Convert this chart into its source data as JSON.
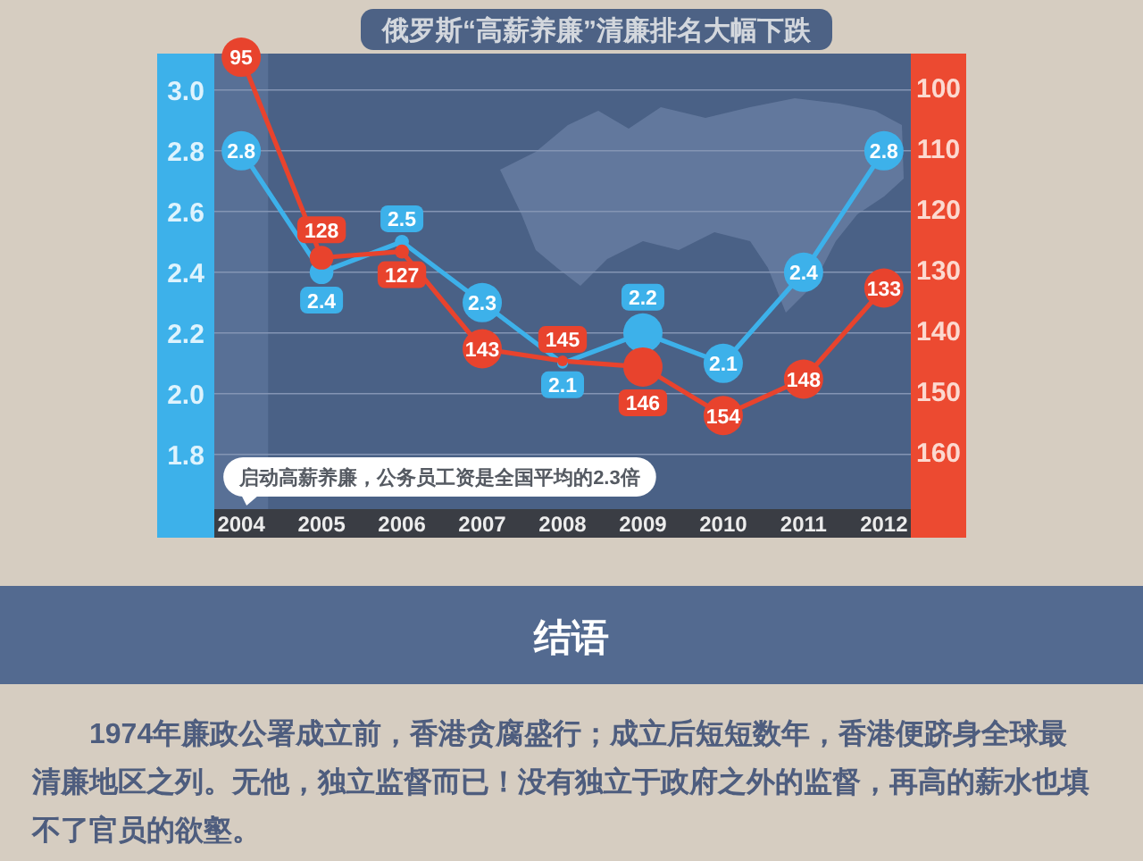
{
  "chart_data": {
    "type": "line",
    "title": "俄罗斯“高薪养廉”清廉排名大幅下跌",
    "categories": [
      "2004",
      "2005",
      "2006",
      "2007",
      "2008",
      "2009",
      "2010",
      "2011",
      "2012"
    ],
    "series": [
      {
        "color": "#3db1ea",
        "values": [
          2.8,
          2.4,
          2.5,
          2.3,
          2.1,
          2.2,
          2.1,
          2.4,
          2.8
        ]
      },
      {
        "color": "#e8432d",
        "axis": "y2",
        "values": [
          95,
          128,
          127,
          143,
          145,
          146,
          154,
          148,
          133
        ]
      }
    ],
    "ylim": [
      1.62,
      3.12
    ],
    "yticks": [
      1.8,
      {
        "value": 2,
        "label": "2.0"
      },
      2.2,
      2.4,
      2.6,
      2.8,
      {
        "value": 3,
        "label": "3.0"
      }
    ],
    "y2lim": [
      169.4,
      94.4
    ],
    "y2ticks": [
      100,
      110,
      120,
      130,
      140,
      150,
      160
    ],
    "grid": "y",
    "marker": "circle",
    "data_labels": true,
    "bands": [
      {
        "axis": "x",
        "from": "2004",
        "to": "2004",
        "color": "#587096"
      }
    ],
    "annotations": [
      "启动高薪养廉，公务员工资是全国平均的2.3倍",
      "结语",
      "1974年廉政公署成立前，香港贪腐盛行；成立后短短数年，香港便跻身全球最清廉地区之列。无他，独立监督而已！没有独立于政府之外的监督，再高的薪水也填不了官员的欲壑。"
    ]
  }
}
